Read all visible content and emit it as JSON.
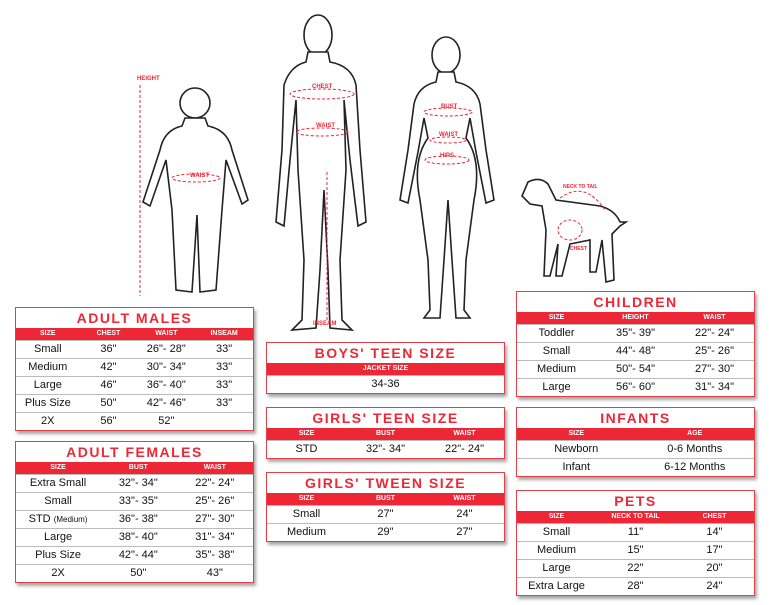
{
  "figure_labels": {
    "height": "HEIGHT",
    "child_waist": "WAIST",
    "chest": "CHEST",
    "man_waist": "WAIST",
    "inseam": "INSEAM",
    "bust": "BUST",
    "woman_waist": "WAIST",
    "hips": "HIPS",
    "neck_to_tail": "NECK TO TAIL",
    "dog_chest": "CHEST"
  },
  "colors": {
    "accent": "#ee2737"
  },
  "tables": {
    "adult_males": {
      "title": "ADULT MALES",
      "headers": [
        "SIZE",
        "CHEST",
        "WAIST",
        "INSEAM"
      ],
      "rows": [
        [
          "Small",
          "36\"",
          "26\"- 28\"",
          "33\""
        ],
        [
          "Medium",
          "42\"",
          "30\"- 34\"",
          "33\""
        ],
        [
          "Large",
          "46\"",
          "36\"- 40\"",
          "33\""
        ],
        [
          "Plus Size",
          "50\"",
          "42\"- 46\"",
          "33\""
        ],
        [
          "2X",
          "56\"",
          "52\"",
          ""
        ]
      ]
    },
    "adult_females": {
      "title": "ADULT FEMALES",
      "headers": [
        "SIZE",
        "BUST",
        "WAIST"
      ],
      "rows": [
        [
          "Extra Small",
          "32\"- 34\"",
          "22\"- 24\""
        ],
        [
          "Small",
          "33\"- 35\"",
          "25\"- 26\""
        ],
        [
          "STD (Medium)",
          "36\"- 38\"",
          "27\"- 30\""
        ],
        [
          "Large",
          "38\"- 40\"",
          "31\"- 34\""
        ],
        [
          "Plus Size",
          "42\"- 44\"",
          "35\"- 38\""
        ],
        [
          "2X",
          "50\"",
          "43\""
        ]
      ]
    },
    "boys_teen": {
      "title": "BOYS' TEEN SIZE",
      "headers": [
        "JACKET SIZE"
      ],
      "rows": [
        [
          "34-36"
        ]
      ]
    },
    "girls_teen": {
      "title": "GIRLS' TEEN SIZE",
      "headers": [
        "SIZE",
        "BUST",
        "WAIST"
      ],
      "rows": [
        [
          "STD",
          "32\"- 34\"",
          "22\"- 24\""
        ]
      ]
    },
    "girls_tween": {
      "title": "GIRLS' TWEEN SIZE",
      "headers": [
        "SIZE",
        "BUST",
        "WAIST"
      ],
      "rows": [
        [
          "Small",
          "27\"",
          "24\""
        ],
        [
          "Medium",
          "29\"",
          "27\""
        ]
      ]
    },
    "children": {
      "title": "CHILDREN",
      "headers": [
        "SIZE",
        "HEIGHT",
        "WAIST"
      ],
      "rows": [
        [
          "Toddler",
          "35\"- 39\"",
          "22\"- 24\""
        ],
        [
          "Small",
          "44\"- 48\"",
          "25\"- 26\""
        ],
        [
          "Medium",
          "50\"- 54\"",
          "27\"- 30\""
        ],
        [
          "Large",
          "56\"- 60\"",
          "31\"- 34\""
        ]
      ]
    },
    "infants": {
      "title": "INFANTS",
      "headers": [
        "SIZE",
        "AGE"
      ],
      "rows": [
        [
          "Newborn",
          "0-6 Months"
        ],
        [
          "Infant",
          "6-12 Months"
        ]
      ]
    },
    "pets": {
      "title": "PETS",
      "headers": [
        "SIZE",
        "NECK TO TAIL",
        "CHEST"
      ],
      "rows": [
        [
          "Small",
          "11\"",
          "14\""
        ],
        [
          "Medium",
          "15\"",
          "17\""
        ],
        [
          "Large",
          "22\"",
          "20\""
        ],
        [
          "Extra Large",
          "28\"",
          "24\""
        ]
      ]
    }
  }
}
